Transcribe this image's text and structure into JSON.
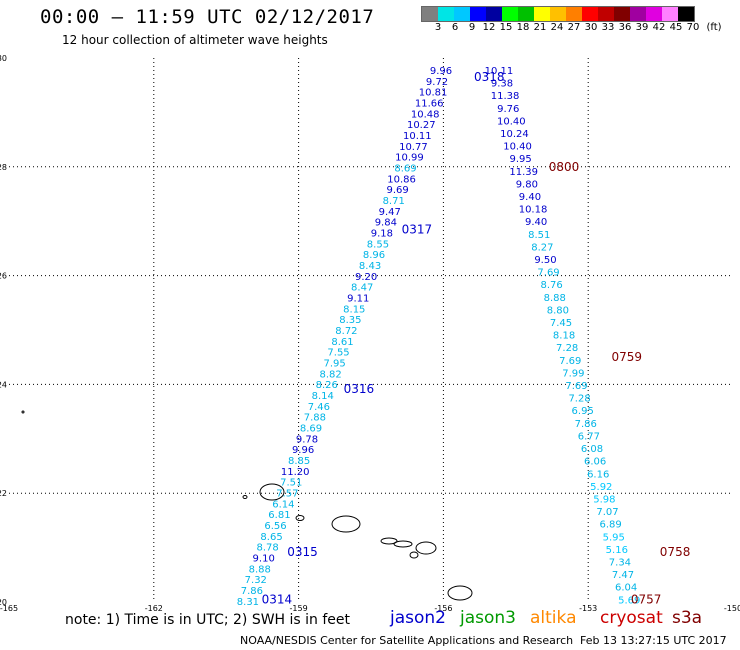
{
  "header": {
    "title": "00:00 – 11:59 UTC 02/12/2017",
    "subtitle": "12 hour collection of altimeter wave heights"
  },
  "colorbar": {
    "colors": [
      "#7f7f7f",
      "#00e5e5",
      "#00c8ff",
      "#0000ff",
      "#0000a0",
      "#00ff00",
      "#00c000",
      "#ffff00",
      "#ffc000",
      "#ff7f00",
      "#ff0000",
      "#c00000",
      "#800000",
      "#a000a0",
      "#e000e0",
      "#ff80ff",
      "#000000"
    ],
    "labels": [
      "3",
      "6",
      "9",
      "12",
      "15",
      "18",
      "21",
      "24",
      "27",
      "30",
      "33",
      "36",
      "39",
      "42",
      "45",
      "70",
      "(ft)"
    ]
  },
  "map": {
    "lon_min": -165,
    "lon_max": -150,
    "lat_min": 20,
    "lat_max": 30,
    "x_ticks": [
      "-165",
      "-162",
      "-159",
      "-156",
      "-153",
      "-150"
    ],
    "y_ticks": [
      "30",
      "28",
      "26",
      "24",
      "22",
      "20"
    ],
    "y_tick_values": [
      30,
      28,
      26,
      24,
      22,
      20
    ]
  },
  "tracks": {
    "left": {
      "color_scheme": "jason2",
      "wave_heights": [
        "9.96",
        "9.72",
        "10.81",
        "11.66",
        "10.48",
        "10.27",
        "10.11",
        "10.77",
        "10.99",
        "8.69",
        "10.86",
        "9.69",
        "8.71",
        "9.47",
        "9.84",
        "9.18",
        "8.55",
        "8.96",
        "8.43",
        "9.20",
        "8.47",
        "9.11",
        "8.15",
        "8.35",
        "8.72",
        "8.61",
        "7.55",
        "7.95",
        "8.82",
        "8.26",
        "8.14",
        "7.46",
        "7.88",
        "8.69",
        "9.78",
        "9.96",
        "8.85",
        "11.20",
        "7.51",
        "7.57",
        "6.14",
        "6.81",
        "6.56",
        "8.65",
        "8.78",
        "9.10",
        "8.88",
        "7.32",
        "7.86",
        "8.31"
      ],
      "heights_ft": [
        9.96,
        9.72,
        10.81,
        11.66,
        10.48,
        10.27,
        10.11,
        10.77,
        10.99,
        8.69,
        10.86,
        9.69,
        8.71,
        9.47,
        9.84,
        9.18,
        8.55,
        8.96,
        8.43,
        9.2,
        8.47,
        9.11,
        8.15,
        8.35,
        8.72,
        8.61,
        7.55,
        7.95,
        8.82,
        8.26,
        8.14,
        7.46,
        7.88,
        8.69,
        9.78,
        9.96,
        8.85,
        11.2,
        7.51,
        7.57,
        6.14,
        6.81,
        6.56,
        8.65,
        8.78,
        9.1,
        8.88,
        7.32,
        7.86,
        8.31
      ],
      "lat_start": 29.78,
      "lat_end": 20.02,
      "lon_start": -156.05,
      "lon_end": -160.05,
      "time_labels": [
        {
          "text": "0318",
          "lat": 29.65,
          "lon": -155.05
        },
        {
          "text": "0317",
          "lat": 26.85,
          "lon": -156.55
        },
        {
          "text": "0316",
          "lat": 23.92,
          "lon": -157.75
        },
        {
          "text": "0315",
          "lat": 20.92,
          "lon": -158.92
        },
        {
          "text": "0314",
          "lat": 20.05,
          "lon": -159.45
        }
      ]
    },
    "right": {
      "color_scheme": "jason2",
      "wave_heights": [
        "10.11",
        "9.38",
        "11.38",
        "9.76",
        "10.40",
        "10.24",
        "10.40",
        "9.95",
        "11.39",
        "9.80",
        "9.40",
        "10.18",
        "9.40",
        "8.51",
        "8.27",
        "9.50",
        "7.69",
        "8.76",
        "8.88",
        "8.80",
        "7.45",
        "8.18",
        "7.28",
        "7.69",
        "7.99",
        "7.69",
        "7.28",
        "6.95",
        "7.86",
        "6.77",
        "6.08",
        "6.06",
        "6.16",
        "5.92",
        "5.98",
        "7.07",
        "6.89",
        "5.95",
        "5.16",
        "7.34",
        "7.47",
        "6.04",
        "5.69"
      ],
      "heights_ft": [
        10.11,
        9.38,
        11.38,
        9.76,
        10.4,
        10.24,
        10.4,
        9.95,
        11.39,
        9.8,
        9.4,
        10.18,
        9.4,
        8.51,
        8.27,
        9.5,
        7.69,
        8.76,
        8.88,
        8.8,
        7.45,
        8.18,
        7.28,
        7.69,
        7.99,
        7.69,
        7.28,
        6.95,
        7.86,
        6.77,
        6.08,
        6.06,
        6.16,
        5.92,
        5.98,
        7.07,
        6.89,
        5.95,
        5.16,
        7.34,
        7.47,
        6.04,
        5.69
      ],
      "lat_start": 29.78,
      "lat_end": 20.05,
      "lon_start": -154.85,
      "lon_end": -152.15,
      "time_labels": [
        {
          "text": "0800",
          "lat": 28.0,
          "lon": -153.5
        },
        {
          "text": "0759",
          "lat": 24.5,
          "lon": -152.2
        },
        {
          "text": "0758",
          "lat": 20.92,
          "lon": -151.2
        },
        {
          "text": "0757",
          "lat": 20.05,
          "lon": -151.8
        }
      ]
    }
  },
  "note": "note: 1) Time is in UTC; 2) SWH is in feet",
  "legend": [
    {
      "label": "jason2",
      "color": "#0000cc"
    },
    {
      "label": "jason3",
      "color": "#009900"
    },
    {
      "label": "altika",
      "color": "#ff8800"
    },
    {
      "label": "cryosat",
      "color": "#cc0000"
    },
    {
      "label": "s3a",
      "color": "#800000"
    }
  ],
  "footer": {
    "center": "NOAA/NESDIS Center for Satellite Applications and Research",
    "timestamp": "Feb 13 13:27:15 UTC 2017"
  },
  "colors": {
    "wave_0_6": "#00c8ff",
    "wave_6_9": "#00aadd",
    "wave_9_12": "#0000cc",
    "time_label_jason2": "#0000cc",
    "time_label_s3a": "#800000"
  }
}
